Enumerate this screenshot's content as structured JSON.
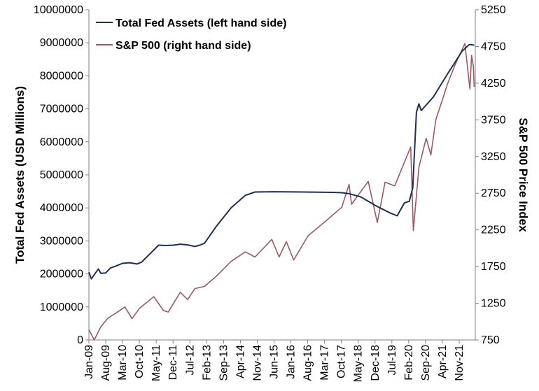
{
  "chart_data": {
    "type": "line",
    "x_ticks": [
      "Jan-09",
      "Aug-09",
      "Mar-10",
      "Oct-10",
      "May-11",
      "Dec-11",
      "Jul-12",
      "Feb-13",
      "Sep-13",
      "Apr-14",
      "Nov-14",
      "Jun-15",
      "Jan-16",
      "Aug-16",
      "Mar-17",
      "Oct-17",
      "May-18",
      "Dec-18",
      "Jul-19",
      "Feb-20",
      "Sep-20",
      "Apr-21",
      "Nov-21"
    ],
    "ylabel_left": "Total Fed Assets (USD Millions)",
    "ylabel_right": "S&P 500 Price Index",
    "ylim_left": [
      0,
      10000000
    ],
    "ylim_right": [
      750,
      5250
    ],
    "yticks_left": [
      "0",
      "1000000",
      "2000000",
      "3000000",
      "4000000",
      "5000000",
      "6000000",
      "7000000",
      "8000000",
      "9000000",
      "10000000"
    ],
    "yticks_right": [
      "750",
      "1250",
      "1750",
      "2250",
      "2750",
      "3250",
      "3750",
      "4250",
      "4750",
      "5250"
    ],
    "legend_position": "top-left",
    "grid": false,
    "series": [
      {
        "name": "Total Fed Assets (left hand side)",
        "axis": "left",
        "color": "#1f3050",
        "points": [
          [
            "2009-01-01",
            2050000
          ],
          [
            "2009-02-01",
            1850000
          ],
          [
            "2009-04-01",
            2050000
          ],
          [
            "2009-05-01",
            2150000
          ],
          [
            "2009-06-01",
            2020000
          ],
          [
            "2009-08-01",
            2030000
          ],
          [
            "2009-10-01",
            2180000
          ],
          [
            "2009-12-01",
            2230000
          ],
          [
            "2010-03-01",
            2320000
          ],
          [
            "2010-06-01",
            2340000
          ],
          [
            "2010-09-01",
            2300000
          ],
          [
            "2010-11-01",
            2360000
          ],
          [
            "2011-03-01",
            2650000
          ],
          [
            "2011-06-01",
            2870000
          ],
          [
            "2011-09-01",
            2860000
          ],
          [
            "2011-12-01",
            2870000
          ],
          [
            "2012-03-01",
            2900000
          ],
          [
            "2012-06-01",
            2880000
          ],
          [
            "2012-09-01",
            2830000
          ],
          [
            "2012-11-01",
            2870000
          ],
          [
            "2013-01-01",
            2930000
          ],
          [
            "2013-06-01",
            3450000
          ],
          [
            "2013-12-01",
            4000000
          ],
          [
            "2014-06-01",
            4380000
          ],
          [
            "2014-10-01",
            4480000
          ],
          [
            "2015-06-01",
            4490000
          ],
          [
            "2016-06-01",
            4480000
          ],
          [
            "2017-06-01",
            4470000
          ],
          [
            "2017-10-01",
            4460000
          ],
          [
            "2018-01-01",
            4430000
          ],
          [
            "2018-06-01",
            4330000
          ],
          [
            "2018-12-01",
            4070000
          ],
          [
            "2019-06-01",
            3850000
          ],
          [
            "2019-09-01",
            3760000
          ],
          [
            "2019-12-01",
            4150000
          ],
          [
            "2020-02-01",
            4200000
          ],
          [
            "2020-03-15",
            4600000
          ],
          [
            "2020-05-01",
            6900000
          ],
          [
            "2020-06-01",
            7150000
          ],
          [
            "2020-07-01",
            6950000
          ],
          [
            "2020-12-01",
            7360000
          ],
          [
            "2021-06-01",
            8070000
          ],
          [
            "2021-12-01",
            8750000
          ],
          [
            "2022-03-01",
            8950000
          ],
          [
            "2022-05-01",
            8930000
          ]
        ]
      },
      {
        "name": "S&P 500 (right hand side)",
        "axis": "right",
        "color": "#9a5a66",
        "points": [
          [
            "2009-01-01",
            890
          ],
          [
            "2009-03-09",
            740
          ],
          [
            "2009-06-01",
            930
          ],
          [
            "2009-09-01",
            1050
          ],
          [
            "2009-12-01",
            1110
          ],
          [
            "2010-04-01",
            1200
          ],
          [
            "2010-07-01",
            1040
          ],
          [
            "2010-10-01",
            1180
          ],
          [
            "2011-04-01",
            1340
          ],
          [
            "2011-08-01",
            1150
          ],
          [
            "2011-10-01",
            1130
          ],
          [
            "2012-03-01",
            1400
          ],
          [
            "2012-06-01",
            1300
          ],
          [
            "2012-09-01",
            1450
          ],
          [
            "2013-01-01",
            1480
          ],
          [
            "2013-06-01",
            1620
          ],
          [
            "2013-12-01",
            1820
          ],
          [
            "2014-06-01",
            1950
          ],
          [
            "2014-10-01",
            1880
          ],
          [
            "2015-05-01",
            2120
          ],
          [
            "2015-08-01",
            1880
          ],
          [
            "2015-11-01",
            2090
          ],
          [
            "2016-02-01",
            1840
          ],
          [
            "2016-08-01",
            2170
          ],
          [
            "2017-03-01",
            2360
          ],
          [
            "2017-10-01",
            2560
          ],
          [
            "2018-01-01",
            2870
          ],
          [
            "2018-02-01",
            2600
          ],
          [
            "2018-09-01",
            2910
          ],
          [
            "2018-12-24",
            2350
          ],
          [
            "2019-04-01",
            2900
          ],
          [
            "2019-08-01",
            2850
          ],
          [
            "2020-02-19",
            3380
          ],
          [
            "2020-03-23",
            2240
          ],
          [
            "2020-06-01",
            3100
          ],
          [
            "2020-09-01",
            3500
          ],
          [
            "2020-10-30",
            3270
          ],
          [
            "2021-01-01",
            3750
          ],
          [
            "2021-06-01",
            4250
          ],
          [
            "2021-09-01",
            4500
          ],
          [
            "2022-01-03",
            4790
          ],
          [
            "2022-03-08",
            4170
          ],
          [
            "2022-03-29",
            4630
          ],
          [
            "2022-04-20",
            4480
          ],
          [
            "2022-05-01",
            4200
          ]
        ]
      }
    ]
  }
}
